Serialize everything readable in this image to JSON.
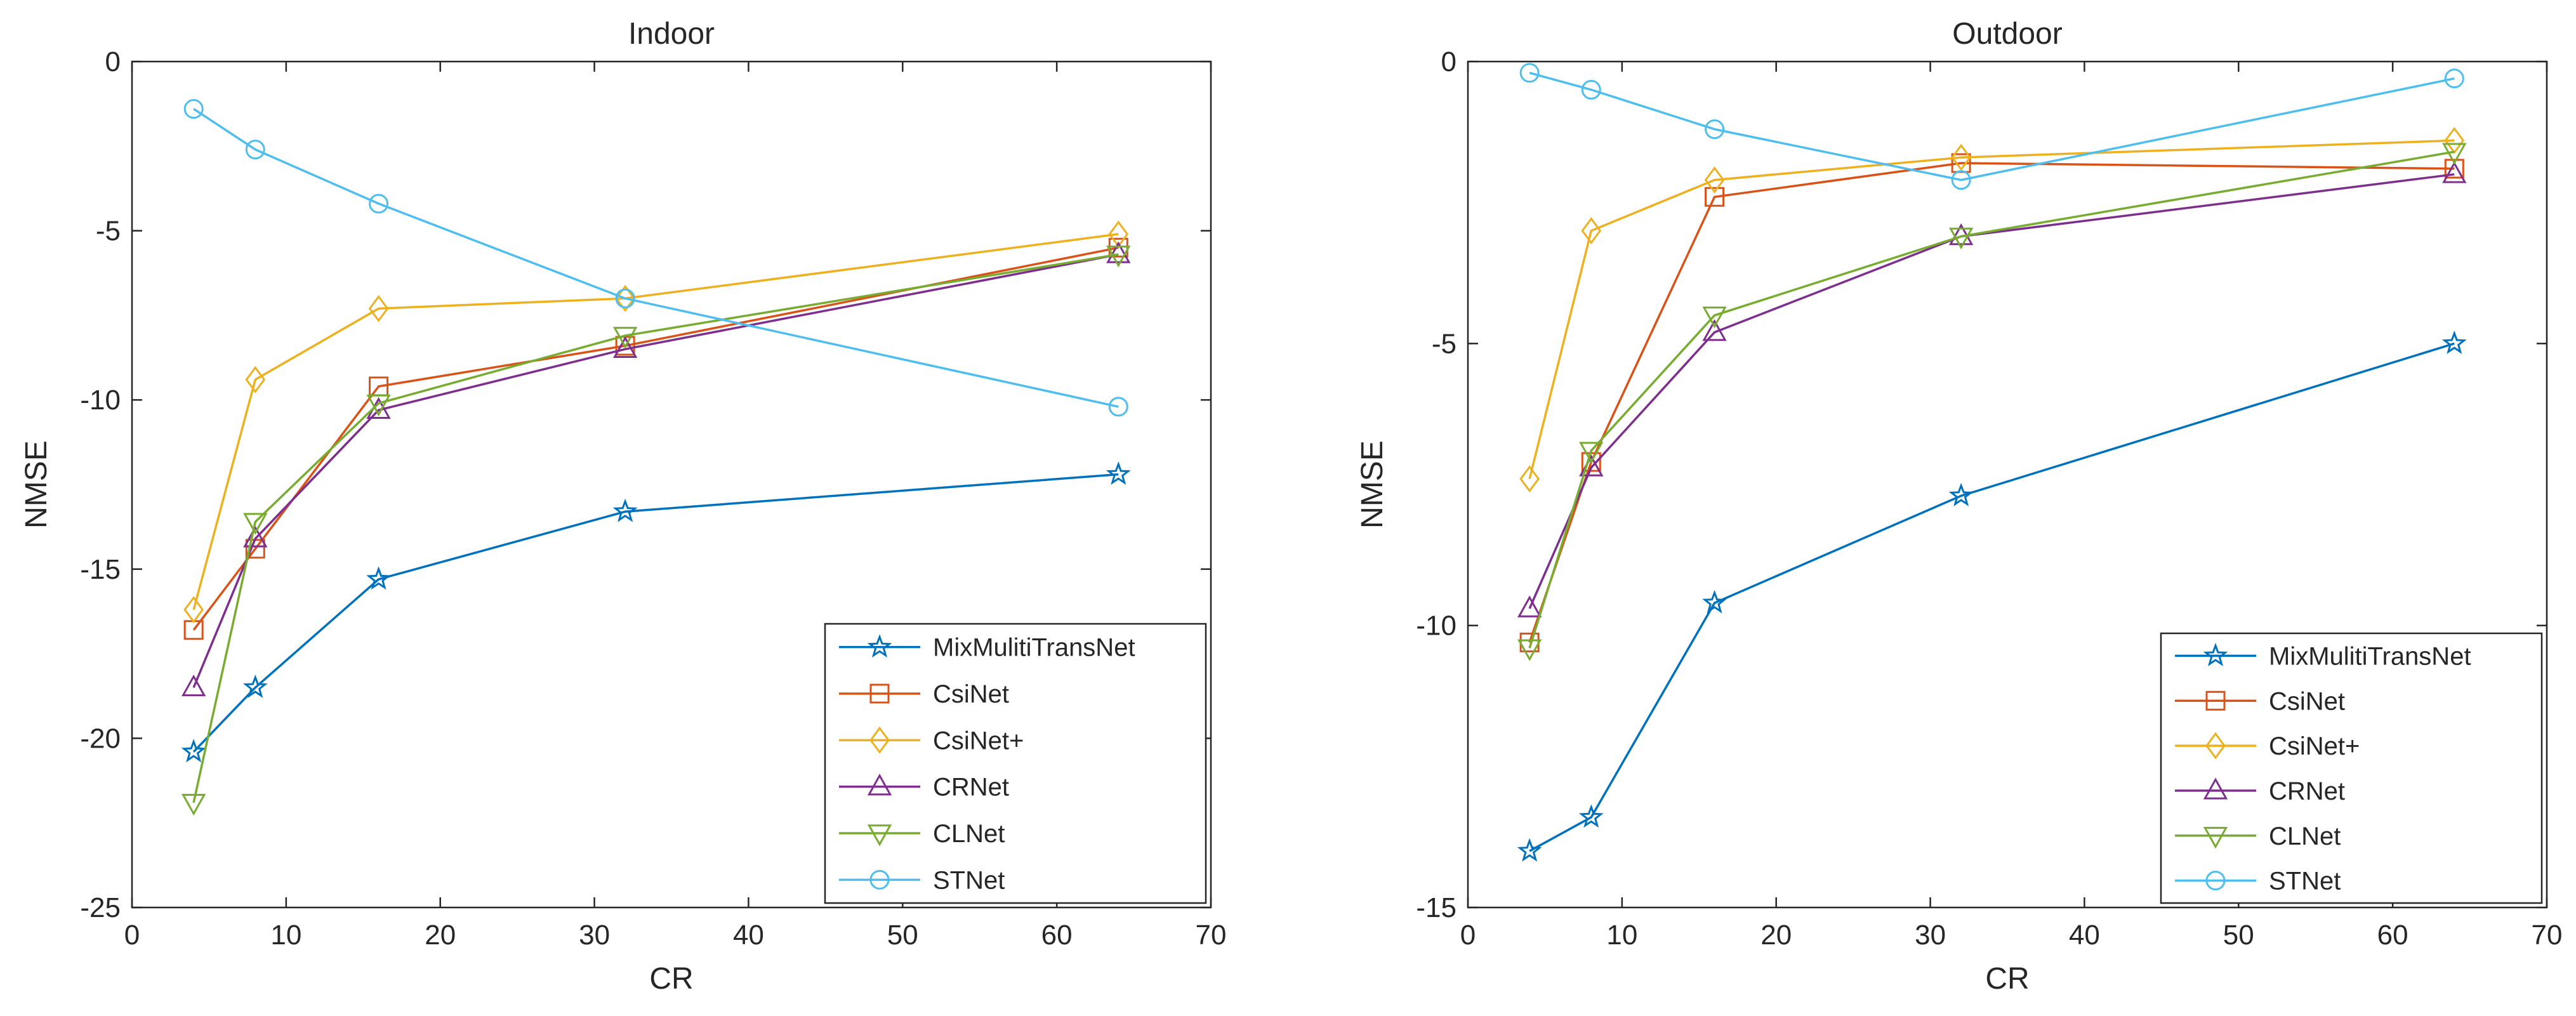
{
  "chart_data": [
    {
      "type": "line",
      "title": "Indoor",
      "xlabel": "CR",
      "ylabel": "NMSE",
      "xlim": [
        0,
        70
      ],
      "ylim": [
        -25,
        0
      ],
      "xticks": [
        0,
        10,
        20,
        30,
        40,
        50,
        60,
        70
      ],
      "yticks": [
        0,
        -5,
        -10,
        -15,
        -20,
        -25
      ],
      "x": [
        4,
        8,
        16,
        32,
        64
      ],
      "legend_position": "bottom-right",
      "series": [
        {
          "name": "MixMulitiTransNet",
          "values": [
            -20.4,
            -18.5,
            -15.3,
            -13.3,
            -12.2
          ],
          "color": "#0072bd",
          "marker": "star"
        },
        {
          "name": "CsiNet",
          "values": [
            -16.8,
            -14.4,
            -9.6,
            -8.4,
            -5.5
          ],
          "color": "#d95319",
          "marker": "square"
        },
        {
          "name": "CsiNet+",
          "values": [
            -16.2,
            -9.4,
            -7.3,
            -7.0,
            -5.1
          ],
          "color": "#edb120",
          "marker": "diamond"
        },
        {
          "name": "CRNet",
          "values": [
            -18.5,
            -14.1,
            -10.3,
            -8.5,
            -5.7
          ],
          "color": "#7e2f8e",
          "marker": "triangle-up"
        },
        {
          "name": "CLNet",
          "values": [
            -21.9,
            -13.6,
            -10.1,
            -8.1,
            -5.7
          ],
          "color": "#77ac30",
          "marker": "triangle-down"
        },
        {
          "name": "STNet",
          "values": [
            -1.4,
            -2.6,
            -4.2,
            -7.0,
            -10.2
          ],
          "color": "#4dbeee",
          "marker": "circle"
        }
      ]
    },
    {
      "type": "line",
      "title": "Outdoor",
      "xlabel": "CR",
      "ylabel": "NMSE",
      "xlim": [
        0,
        70
      ],
      "ylim": [
        -15,
        0
      ],
      "xticks": [
        0,
        10,
        20,
        30,
        40,
        50,
        60,
        70
      ],
      "yticks": [
        0,
        -5,
        -10,
        -15
      ],
      "x": [
        4,
        8,
        16,
        32,
        64
      ],
      "legend_position": "bottom-right",
      "series": [
        {
          "name": "MixMulitiTransNet",
          "values": [
            -14.0,
            -13.4,
            -9.6,
            -7.7,
            -5.0
          ],
          "color": "#0072bd",
          "marker": "star"
        },
        {
          "name": "CsiNet",
          "values": [
            -10.3,
            -7.1,
            -2.4,
            -1.8,
            -1.9
          ],
          "color": "#d95319",
          "marker": "square"
        },
        {
          "name": "CsiNet+",
          "values": [
            -7.4,
            -3.0,
            -2.1,
            -1.7,
            -1.4
          ],
          "color": "#edb120",
          "marker": "diamond"
        },
        {
          "name": "CRNet",
          "values": [
            -9.7,
            -7.2,
            -4.8,
            -3.1,
            -2.0
          ],
          "color": "#7e2f8e",
          "marker": "triangle-up"
        },
        {
          "name": "CLNet",
          "values": [
            -10.4,
            -6.9,
            -4.5,
            -3.1,
            -1.6
          ],
          "color": "#77ac30",
          "marker": "triangle-down"
        },
        {
          "name": "STNet",
          "values": [
            -0.2,
            -0.5,
            -1.2,
            -2.1,
            -0.3
          ],
          "color": "#4dbeee",
          "marker": "circle"
        }
      ]
    }
  ]
}
